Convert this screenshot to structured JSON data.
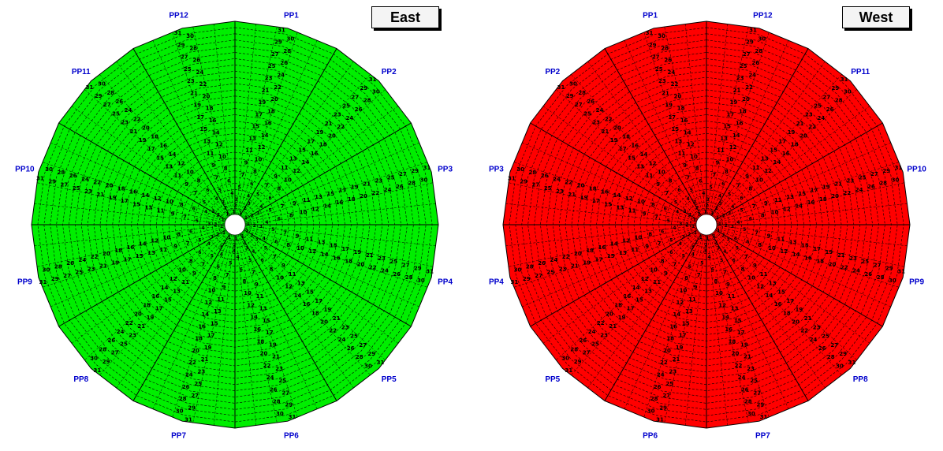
{
  "panels": [
    {
      "id": "east",
      "title": "East",
      "fill_color": "#00ee00",
      "sector_labels_clockwise_from_top": [
        "PP1",
        "PP2",
        "PP3",
        "PP4",
        "PP5",
        "PP6",
        "PP7",
        "PP8",
        "PP9",
        "PP10",
        "PP11",
        "PP12"
      ]
    },
    {
      "id": "west",
      "title": "West",
      "fill_color": "#ff0000",
      "sector_labels_clockwise_from_top": [
        "PP12",
        "PP11",
        "PP10",
        "PP9",
        "PP8",
        "PP7",
        "PP6",
        "PP5",
        "PP4",
        "PP3",
        "PP2",
        "PP1"
      ]
    }
  ],
  "ring_numbers": [
    1,
    2,
    3,
    4,
    5,
    6,
    7,
    8,
    9,
    10,
    11,
    12,
    13,
    14,
    15,
    16,
    17,
    18,
    19,
    20,
    21,
    22,
    23,
    24,
    25,
    26,
    27,
    28,
    29,
    30,
    31
  ],
  "colors": {
    "label_blue": "#0000cc",
    "grid": "#000000"
  },
  "footer_text": ""
}
